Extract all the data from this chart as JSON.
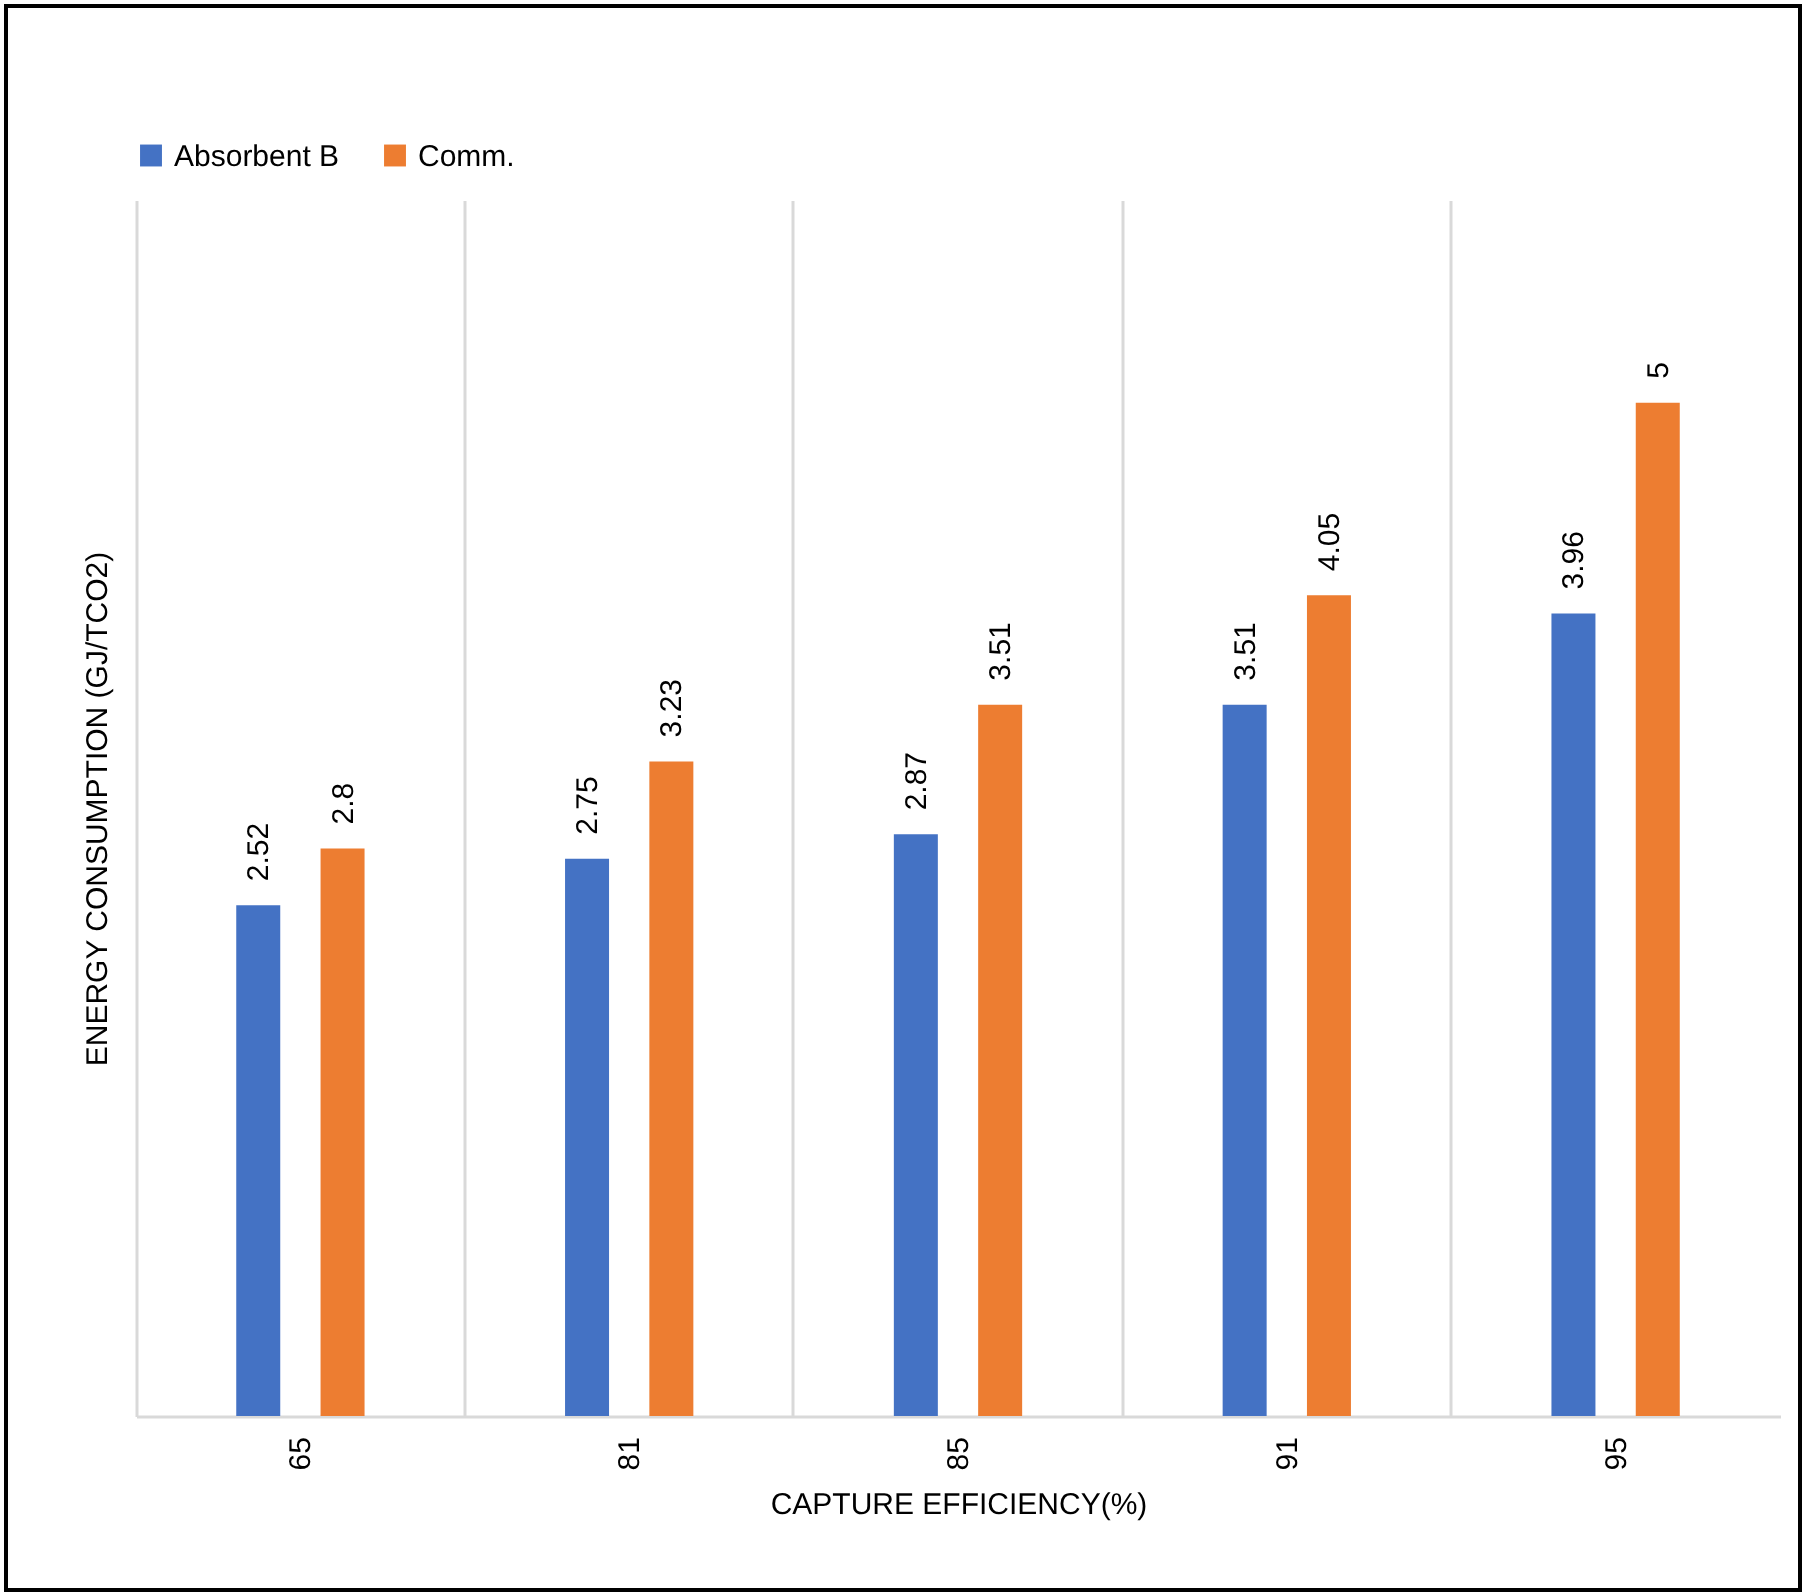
{
  "chart_data": {
    "type": "bar",
    "xlabel": "CAPTURE EFFICIENCY(%)",
    "ylabel": "ENERGY CONSUMPTION (GJ/TCO2)",
    "categories": [
      "65",
      "81",
      "85",
      "91",
      "95"
    ],
    "series": [
      {
        "name": "Absorbent B",
        "color": "#4472c4",
        "values": [
          2.52,
          2.75,
          2.87,
          3.51,
          3.96
        ]
      },
      {
        "name": "Comm.",
        "color": "#ed7d31",
        "values": [
          2.8,
          3.23,
          3.51,
          4.05,
          5
        ]
      }
    ],
    "ylim": [
      0,
      6
    ],
    "tick_labels": "x",
    "grid": "x",
    "legend": "top",
    "data_labels": true
  }
}
